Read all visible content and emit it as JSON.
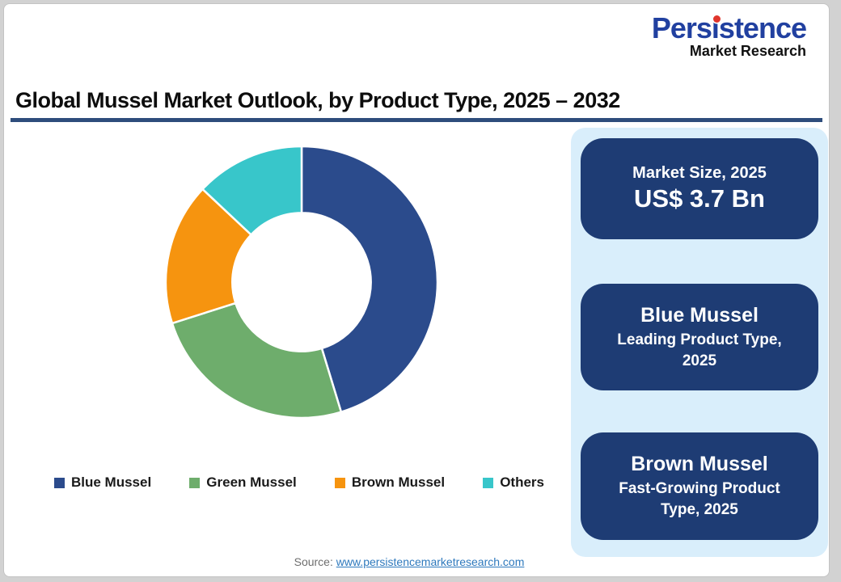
{
  "brand": {
    "name": "Persistence",
    "tagline": "Market Research",
    "name_color": "#2140a0",
    "tagline_color": "#111111",
    "dot_color": "#e0352c"
  },
  "header": {
    "title": "Global Mussel Market Outlook, by Product Type, 2025 – 2032",
    "underline_color": "#2e4d7c"
  },
  "chart_data": {
    "type": "pie",
    "subtype": "donut",
    "title": "Global Mussel Market Outlook, by Product Type, 2025 – 2032",
    "categories": [
      "Blue Mussel",
      "Green Mussel",
      "Brown Mussel",
      "Others"
    ],
    "values": [
      45.3,
      24.8,
      16.9,
      13.0
    ],
    "unit": "percent-share",
    "colors": [
      "#2b4b8c",
      "#6ead6c",
      "#f6940f",
      "#38c6ca"
    ],
    "donut_hole_ratio": 0.51,
    "start_angle_deg": 0,
    "direction": "clockwise",
    "legend_position": "bottom",
    "data_labels": false
  },
  "sidebar": {
    "background_color": "#d9eefb",
    "card_color": "#1e3c74",
    "cards": [
      {
        "title": "Market Size, 2025",
        "value": "US$ 3.7 Bn"
      },
      {
        "title": "Blue Mussel",
        "subtitle": "Leading Product Type, 2025"
      },
      {
        "title": "Brown Mussel",
        "subtitle": "Fast-Growing Product Type, 2025"
      }
    ]
  },
  "footer": {
    "source_label": "Source:",
    "source_link": "www.persistencemarketresearch.com"
  }
}
